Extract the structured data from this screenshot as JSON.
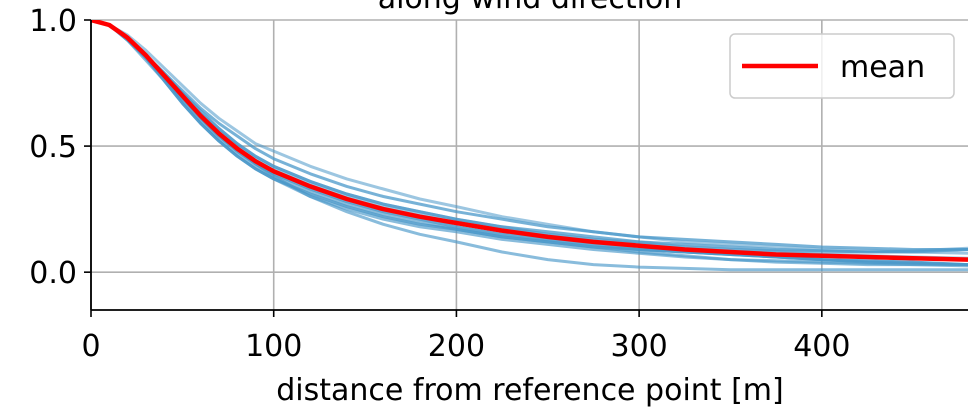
{
  "chart_data": {
    "type": "line",
    "title": "along wind direction",
    "xlabel": "distance from reference point [m]",
    "ylabel": "",
    "xlim": [
      0,
      480
    ],
    "ylim": [
      -0.15,
      1.0
    ],
    "xticks": [
      0,
      100,
      200,
      300,
      400
    ],
    "xtick_labels": [
      "0",
      "100",
      "200",
      "300",
      "400"
    ],
    "yticks": [
      0.0,
      0.5,
      1.0
    ],
    "ytick_labels": [
      "0.0",
      "0.5",
      "1.0"
    ],
    "grid": true,
    "legend": {
      "position": "top-right",
      "entries": [
        "mean"
      ]
    },
    "colors": {
      "mean": "#ff0000",
      "members": "#4a98c9"
    },
    "x": [
      0,
      10,
      20,
      30,
      40,
      50,
      60,
      70,
      80,
      90,
      100,
      120,
      140,
      160,
      180,
      200,
      225,
      250,
      275,
      300,
      325,
      350,
      375,
      400,
      425,
      450,
      480
    ],
    "series": [
      {
        "name": "mean",
        "values": [
          1.0,
          0.98,
          0.93,
          0.86,
          0.78,
          0.7,
          0.62,
          0.55,
          0.49,
          0.44,
          0.4,
          0.34,
          0.29,
          0.25,
          0.22,
          0.195,
          0.165,
          0.14,
          0.12,
          0.105,
          0.09,
          0.08,
          0.07,
          0.065,
          0.06,
          0.055,
          0.05
        ]
      },
      {
        "values": [
          1.0,
          0.98,
          0.94,
          0.88,
          0.81,
          0.74,
          0.67,
          0.61,
          0.56,
          0.51,
          0.48,
          0.42,
          0.37,
          0.33,
          0.29,
          0.26,
          0.22,
          0.19,
          0.16,
          0.14,
          0.12,
          0.11,
          0.1,
          0.09,
          0.085,
          0.08,
          0.075
        ]
      },
      {
        "values": [
          1.0,
          0.98,
          0.93,
          0.86,
          0.78,
          0.7,
          0.62,
          0.55,
          0.49,
          0.43,
          0.38,
          0.3,
          0.24,
          0.19,
          0.15,
          0.12,
          0.08,
          0.05,
          0.03,
          0.02,
          0.015,
          0.01,
          0.01,
          0.01,
          0.01,
          0.01,
          0.01
        ]
      },
      {
        "values": [
          1.0,
          0.98,
          0.93,
          0.86,
          0.79,
          0.71,
          0.64,
          0.57,
          0.51,
          0.46,
          0.42,
          0.36,
          0.31,
          0.27,
          0.24,
          0.21,
          0.18,
          0.16,
          0.14,
          0.12,
          0.11,
          0.1,
          0.09,
          0.085,
          0.08,
          0.08,
          0.09
        ]
      },
      {
        "values": [
          1.0,
          0.98,
          0.92,
          0.85,
          0.76,
          0.67,
          0.59,
          0.52,
          0.46,
          0.41,
          0.37,
          0.31,
          0.26,
          0.22,
          0.19,
          0.17,
          0.14,
          0.12,
          0.1,
          0.09,
          0.08,
          0.07,
          0.06,
          0.05,
          0.045,
          0.04,
          0.03
        ]
      },
      {
        "values": [
          1.0,
          0.98,
          0.93,
          0.86,
          0.78,
          0.7,
          0.62,
          0.56,
          0.5,
          0.45,
          0.41,
          0.35,
          0.3,
          0.26,
          0.23,
          0.2,
          0.17,
          0.15,
          0.13,
          0.11,
          0.1,
          0.09,
          0.08,
          0.07,
          0.065,
          0.06,
          0.055
        ]
      },
      {
        "values": [
          1.0,
          0.98,
          0.93,
          0.85,
          0.77,
          0.68,
          0.6,
          0.53,
          0.47,
          0.42,
          0.38,
          0.32,
          0.27,
          0.23,
          0.2,
          0.17,
          0.14,
          0.12,
          0.1,
          0.08,
          0.065,
          0.05,
          0.04,
          0.035,
          0.03,
          0.03,
          0.03
        ]
      },
      {
        "values": [
          1.0,
          0.98,
          0.93,
          0.86,
          0.79,
          0.72,
          0.65,
          0.59,
          0.54,
          0.49,
          0.45,
          0.39,
          0.34,
          0.3,
          0.27,
          0.24,
          0.21,
          0.18,
          0.16,
          0.14,
          0.13,
          0.12,
          0.11,
          0.1,
          0.095,
          0.09,
          0.09
        ]
      },
      {
        "values": [
          1.0,
          0.98,
          0.93,
          0.85,
          0.77,
          0.69,
          0.61,
          0.54,
          0.48,
          0.43,
          0.39,
          0.33,
          0.28,
          0.24,
          0.21,
          0.18,
          0.15,
          0.13,
          0.11,
          0.09,
          0.08,
          0.07,
          0.06,
          0.05,
          0.04,
          0.035,
          0.03
        ]
      },
      {
        "values": [
          1.0,
          0.98,
          0.93,
          0.86,
          0.78,
          0.71,
          0.63,
          0.57,
          0.51,
          0.46,
          0.42,
          0.36,
          0.31,
          0.27,
          0.24,
          0.21,
          0.18,
          0.15,
          0.13,
          0.12,
          0.1,
          0.09,
          0.085,
          0.08,
          0.08,
          0.085,
          0.095
        ]
      },
      {
        "values": [
          1.0,
          0.98,
          0.92,
          0.84,
          0.76,
          0.67,
          0.59,
          0.52,
          0.46,
          0.41,
          0.37,
          0.3,
          0.25,
          0.21,
          0.18,
          0.16,
          0.13,
          0.11,
          0.09,
          0.075,
          0.06,
          0.05,
          0.045,
          0.04,
          0.035,
          0.03,
          0.025
        ]
      }
    ]
  }
}
